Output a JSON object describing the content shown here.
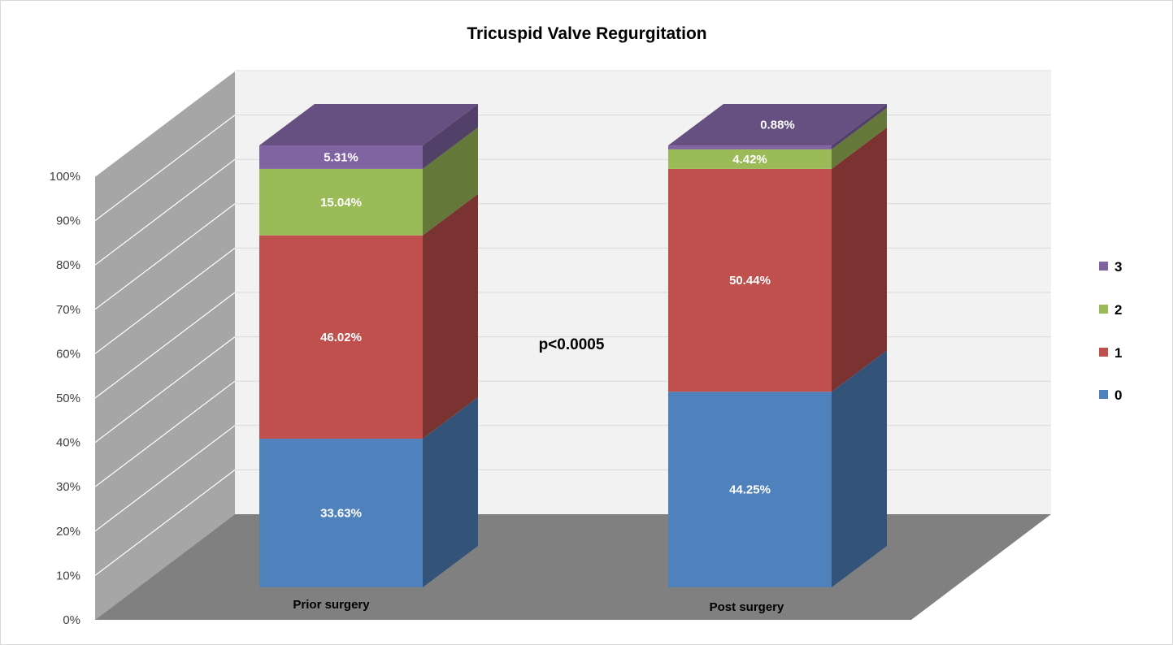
{
  "chart_data": {
    "type": "bar",
    "stacked": true,
    "percent_stacked": true,
    "three_d": true,
    "title": "Tricuspid Valve Regurgitation",
    "categories": [
      "Prior surgery",
      "Post surgery"
    ],
    "series": [
      {
        "name": "0",
        "values": [
          33.63,
          44.25
        ],
        "labels": [
          "33.63%",
          "44.25%"
        ],
        "color": "#4F81BD"
      },
      {
        "name": "1",
        "values": [
          46.02,
          50.44
        ],
        "labels": [
          "46.02%",
          "50.44%"
        ],
        "color": "#C0504D"
      },
      {
        "name": "2",
        "values": [
          15.04,
          4.42
        ],
        "labels": [
          "15.04%",
          "4.42%"
        ],
        "color": "#9BBB59"
      },
      {
        "name": "3",
        "values": [
          5.31,
          0.88
        ],
        "labels": [
          "5.31%",
          "0.88%"
        ],
        "color": "#8064A2"
      }
    ],
    "y_ticks": [
      "0%",
      "10%",
      "20%",
      "30%",
      "40%",
      "50%",
      "60%",
      "70%",
      "80%",
      "90%",
      "100%"
    ],
    "ylim": [
      0,
      100
    ],
    "grid": true,
    "legend_position": "right",
    "annotation": "p<0.0005",
    "colors": {
      "wall_back": "#F2F2F2",
      "wall_side": "#A6A6A6",
      "floor": "#808080",
      "gridline": "#D9D9D9"
    }
  }
}
